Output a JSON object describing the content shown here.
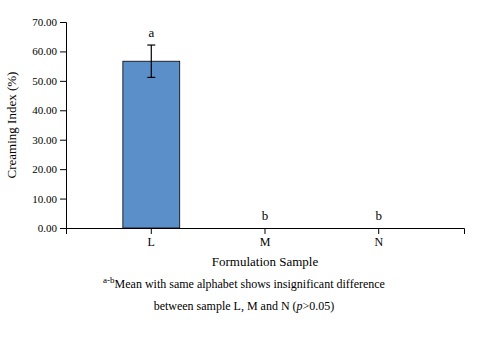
{
  "chart_data": {
    "type": "bar",
    "categories": [
      "L",
      "M",
      "N"
    ],
    "values": [
      56.67,
      0.0,
      0.0
    ],
    "errors": [
      5.5,
      0.0,
      0.0
    ],
    "color": "#5b8fc9",
    "xlabel": "Formulation Sample",
    "ylabel": "Creaming Index (%)",
    "ylim": [
      0,
      70
    ],
    "yticks": [
      {
        "value": 0.0,
        "label": "0.00"
      },
      {
        "value": 10.0,
        "label": "10.00"
      },
      {
        "value": 20.0,
        "label": "20.00"
      },
      {
        "value": 30.0,
        "label": "30.00"
      },
      {
        "value": 40.0,
        "label": "40.00"
      },
      {
        "value": 50.0,
        "label": "50.00"
      },
      {
        "value": 60.0,
        "label": "60.00"
      },
      {
        "value": 70.0,
        "label": "70.00"
      }
    ],
    "significance_labels": [
      "a",
      "b",
      "b"
    ],
    "footnote_mark": "a-b",
    "footnote": [
      "Mean with same alphabet shows insignificant difference",
      "between sample L, M and N (p>0.05)"
    ],
    "grid": false
  }
}
